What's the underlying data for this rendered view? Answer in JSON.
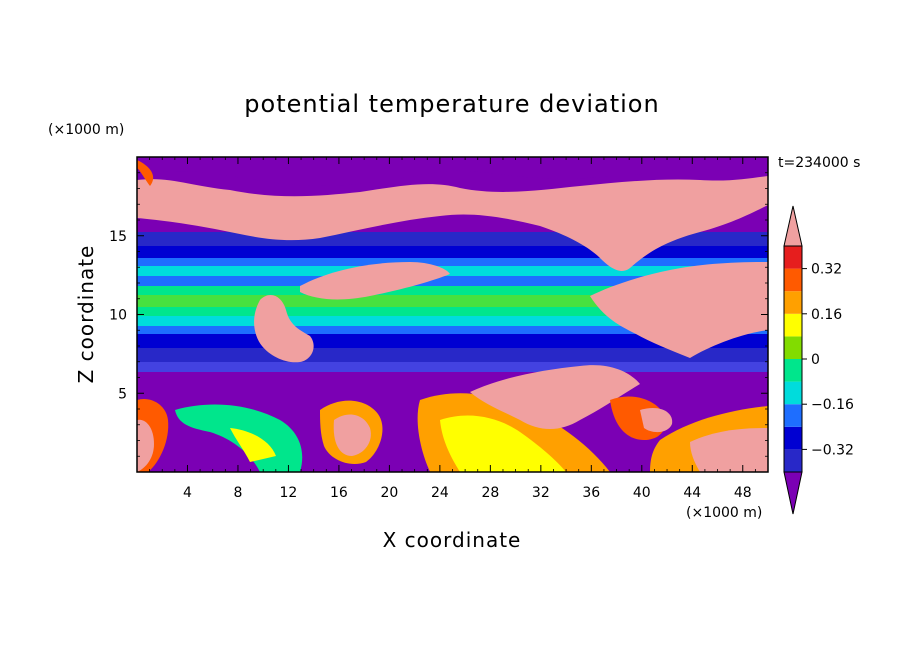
{
  "chart_data": {
    "type": "heatmap",
    "title": "potential temperature deviation",
    "xlabel": "X coordinate",
    "ylabel": "Z coordinate",
    "x_unit": "(×1000 m)",
    "y_unit": "(×1000 m)",
    "time_label": "t=234000 s",
    "xlim": [
      0,
      50
    ],
    "ylim": [
      0,
      20
    ],
    "x_ticks": [
      4,
      8,
      12,
      16,
      20,
      24,
      28,
      32,
      36,
      40,
      44,
      48
    ],
    "y_ticks": [
      5,
      10,
      15
    ],
    "colorbar": {
      "levels": [
        -0.4,
        -0.32,
        -0.24,
        -0.16,
        -0.08,
        0,
        0.08,
        0.16,
        0.24,
        0.32,
        0.4
      ],
      "tick_labels": [
        "0.32",
        "0.16",
        "0",
        "−0.16",
        "−0.32"
      ],
      "tick_values": [
        0.32,
        0.16,
        0,
        -0.16,
        -0.32
      ],
      "colors_low_to_high": [
        "#7b00b4",
        "#2828c8",
        "#0000d2",
        "#1e6eff",
        "#00dcdc",
        "#00e68c",
        "#82dc00",
        "#ffff00",
        "#ffa000",
        "#ff5a00",
        "#e61e1e",
        "#f0a0a0"
      ]
    },
    "regions": [
      {
        "value_band": "high (>0.40)",
        "color": "#f0a0a0"
      },
      {
        "value_band": "low (<-0.40)",
        "color": "#7b00b4"
      }
    ]
  }
}
